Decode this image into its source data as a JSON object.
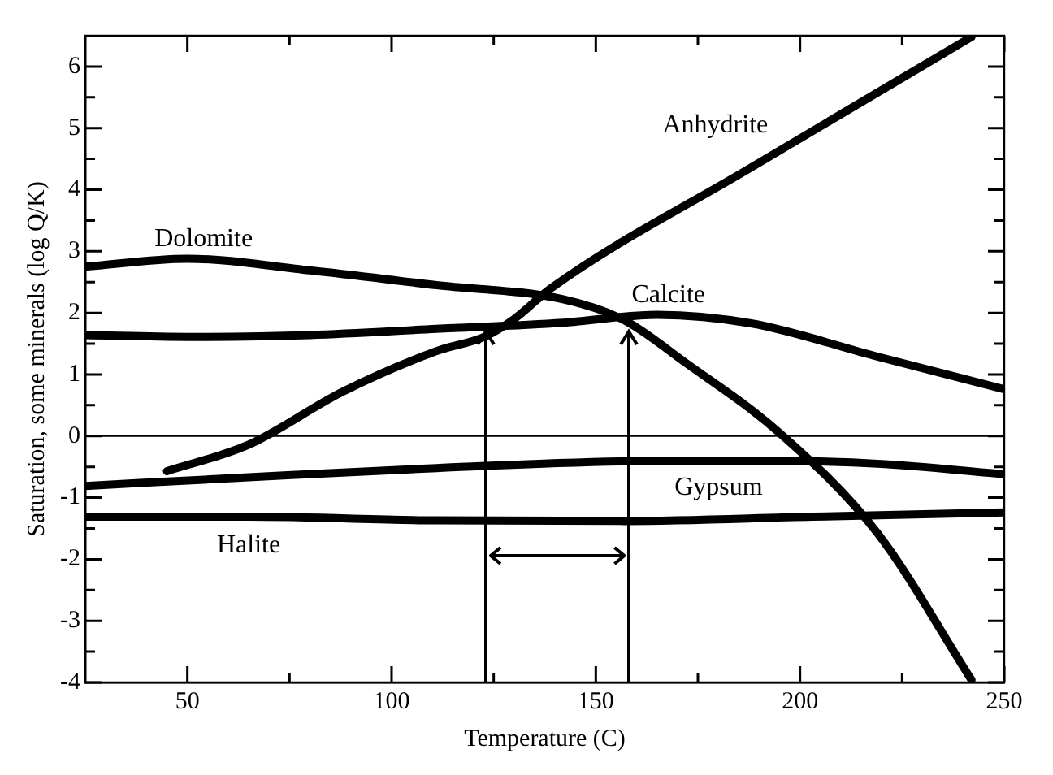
{
  "chart_data": {
    "type": "line",
    "xlabel": "Temperature (C)",
    "ylabel": "Saturation, some minerals (log Q/K)",
    "xlim": [
      25,
      250
    ],
    "ylim": [
      -4,
      6.5
    ],
    "xticks": [
      50,
      {
        "value": 75,
        "label": null
      },
      100,
      {
        "value": 125,
        "label": null
      },
      150,
      {
        "value": 175,
        "label": null
      },
      200,
      {
        "value": 225,
        "label": null
      },
      250
    ],
    "yticks": [
      -4,
      {
        "value": -3.5,
        "label": null
      },
      -3,
      {
        "value": -2.5,
        "label": null
      },
      -2,
      {
        "value": -1.5,
        "label": null
      },
      -1,
      {
        "value": -0.5,
        "label": null
      },
      0,
      {
        "value": 0.5,
        "label": null
      },
      1,
      {
        "value": 1.5,
        "label": null
      },
      2,
      {
        "value": 2.5,
        "label": null
      },
      3,
      {
        "value": 3.5,
        "label": null
      },
      4,
      {
        "value": 4.5,
        "label": null
      },
      5,
      {
        "value": 5.5,
        "label": null
      },
      6
    ],
    "grid": false,
    "legend": false,
    "marker": "none",
    "line_style": "solid",
    "ref_lines": [
      {
        "axis": "y",
        "value": 0,
        "label": null,
        "color": "#000000"
      }
    ],
    "series": [
      {
        "name": "Anhydrite",
        "color": "#000000",
        "x": [
          45,
          65,
          88,
          111,
          123,
          130,
          139,
          188,
          242
        ],
        "values": [
          -0.57,
          -0.14,
          0.72,
          1.38,
          1.62,
          1.9,
          2.4,
          4.36,
          6.48
        ]
      },
      {
        "name": "Dolomite",
        "color": "#000000",
        "x": [
          25,
          50,
          80,
          111,
          142,
          157,
          172,
          195,
          219,
          242
        ],
        "values": [
          2.75,
          2.88,
          2.69,
          2.45,
          2.22,
          1.88,
          1.19,
          0.05,
          -1.58,
          -3.96
        ]
      },
      {
        "name": "Calcite",
        "color": "#000000",
        "x": [
          25,
          50,
          80,
          111,
          142,
          165,
          188,
          219,
          250
        ],
        "values": [
          1.64,
          1.61,
          1.64,
          1.74,
          1.84,
          1.97,
          1.83,
          1.29,
          0.76
        ]
      },
      {
        "name": "Gypsum",
        "color": "#000000",
        "x": [
          25,
          65,
          111,
          157,
          188,
          219,
          250
        ],
        "values": [
          -0.81,
          -0.67,
          -0.52,
          -0.41,
          -0.4,
          -0.45,
          -0.62
        ]
      },
      {
        "name": "Halite",
        "color": "#000000",
        "x": [
          25,
          65,
          111,
          157,
          203,
          250
        ],
        "values": [
          -1.31,
          -1.31,
          -1.37,
          -1.38,
          -1.31,
          -1.24
        ]
      }
    ]
  }
}
